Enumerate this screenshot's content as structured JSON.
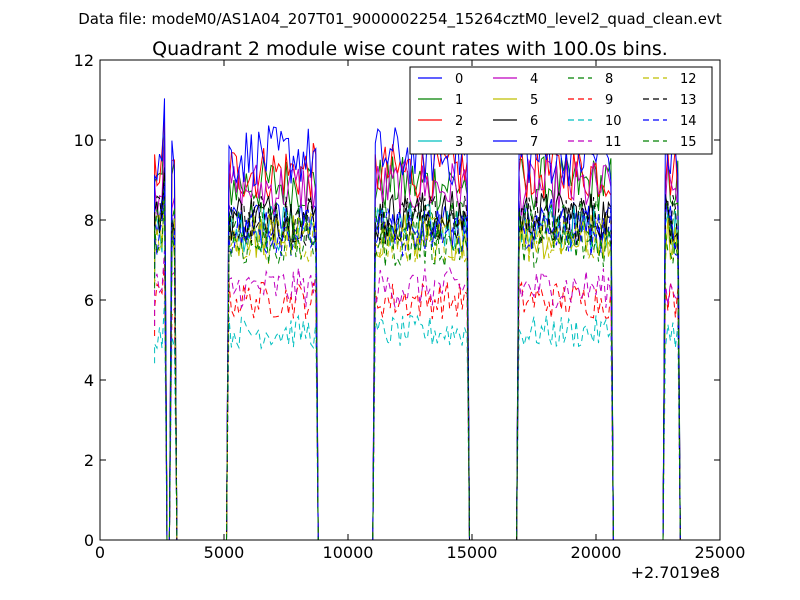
{
  "chart_data": {
    "type": "line",
    "suptitle": "Data file: modeM0/AS1A04_207T01_9000002254_15264cztM0_level2_quad_clean.evt",
    "title": "Quadrant 2 module wise count rates with 100.0s bins.",
    "xlabel": "",
    "ylabel": "",
    "x_offset_label": "+2.7019e8",
    "xlim": [
      0,
      25000
    ],
    "ylim": [
      0,
      12
    ],
    "x_ticks": [
      "0",
      "5000",
      "10000",
      "15000",
      "20000",
      "25000"
    ],
    "y_ticks": [
      "0",
      "2",
      "4",
      "6",
      "8",
      "10",
      "12"
    ],
    "grid": false,
    "legend_position": "top-right",
    "legend_columns": 4,
    "segments": [
      {
        "start": 2200,
        "end": 2600
      },
      {
        "start": 2900,
        "end": 3000
      },
      {
        "start": 5200,
        "end": 8700
      },
      {
        "start": 11100,
        "end": 14800
      },
      {
        "start": 16900,
        "end": 20600
      },
      {
        "start": 22800,
        "end": 23300
      }
    ],
    "series": [
      {
        "name": "0",
        "color": "#0000ff",
        "style": "solid",
        "level": 7.9
      },
      {
        "name": "1",
        "color": "#008000",
        "style": "solid",
        "level": 8.9
      },
      {
        "name": "2",
        "color": "#ff0000",
        "style": "solid",
        "level": 9.2
      },
      {
        "name": "3",
        "color": "#00bfbf",
        "style": "solid",
        "level": 7.8
      },
      {
        "name": "4",
        "color": "#bf00bf",
        "style": "solid",
        "level": 8.8
      },
      {
        "name": "5",
        "color": "#bfbf00",
        "style": "solid",
        "level": 7.6
      },
      {
        "name": "6",
        "color": "#000000",
        "style": "solid",
        "level": 8.1
      },
      {
        "name": "7",
        "color": "#0000ff",
        "style": "solid",
        "level": 9.6
      },
      {
        "name": "8",
        "color": "#008000",
        "style": "dashed",
        "level": 7.9
      },
      {
        "name": "9",
        "color": "#ff0000",
        "style": "dashed",
        "level": 6.0
      },
      {
        "name": "10",
        "color": "#00bfbf",
        "style": "dashed",
        "level": 5.2
      },
      {
        "name": "11",
        "color": "#bf00bf",
        "style": "dashed",
        "level": 6.3
      },
      {
        "name": "12",
        "color": "#bfbf00",
        "style": "dashed",
        "level": 7.5
      },
      {
        "name": "13",
        "color": "#000000",
        "style": "dashed",
        "level": 8.0
      },
      {
        "name": "14",
        "color": "#0000ff",
        "style": "dashed",
        "level": 7.7
      },
      {
        "name": "15",
        "color": "#008000",
        "style": "dashed",
        "level": 7.4
      }
    ]
  }
}
